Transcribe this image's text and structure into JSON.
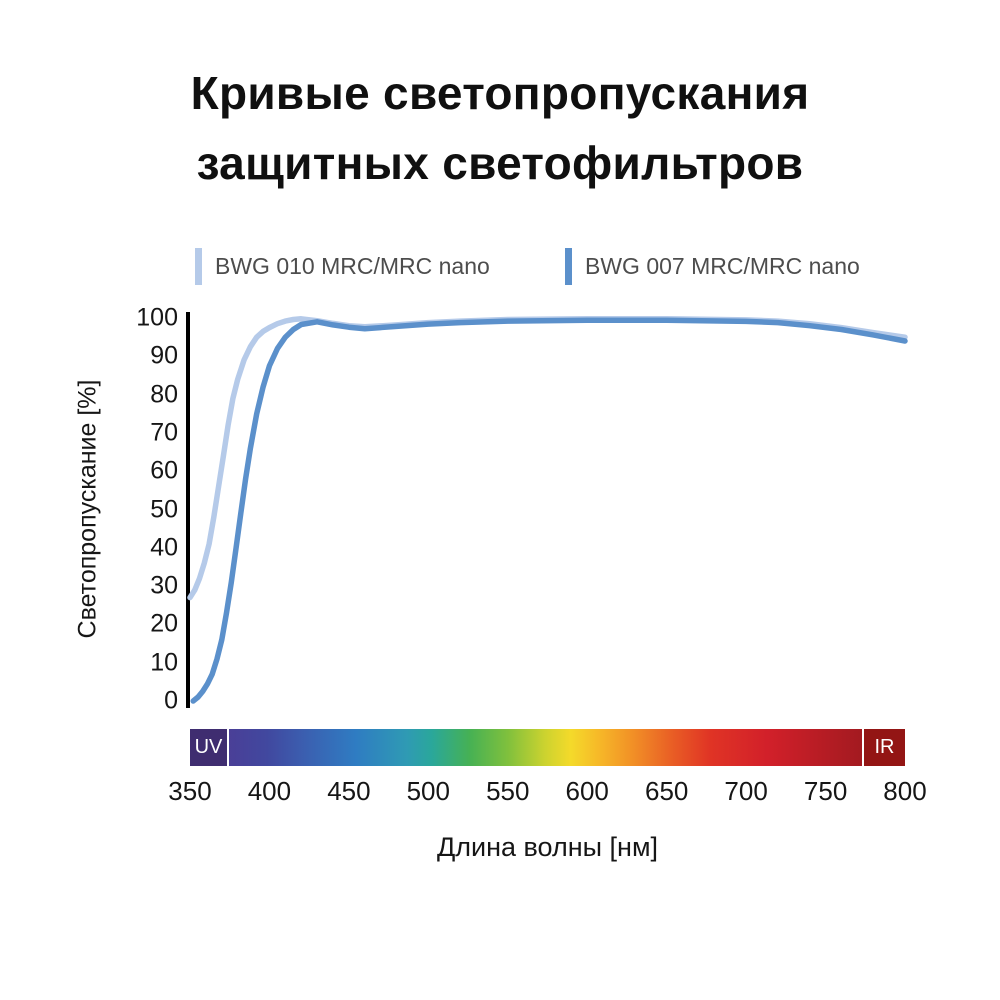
{
  "title": {
    "line1": "Кривые светопропускания",
    "line2": "защитных светофильтров"
  },
  "legend": [
    {
      "label": "BWG 010 MRC/MRC nano",
      "color": "#b5cae9"
    },
    {
      "label": "BWG 007 MRC/MRC nano",
      "color": "#5b90cb"
    }
  ],
  "chart_data": {
    "type": "line",
    "title": "Кривые светопропускания защитных светофильтров",
    "xlabel": "Длина волны [нм]",
    "ylabel": "Светопропускание [%]",
    "xlim": [
      350,
      800
    ],
    "ylim": [
      0,
      100
    ],
    "x_ticks": [
      350,
      400,
      450,
      500,
      550,
      600,
      650,
      700,
      750,
      800
    ],
    "y_ticks": [
      0,
      10,
      20,
      30,
      40,
      50,
      60,
      70,
      80,
      90,
      100
    ],
    "grid": false,
    "legend_position": "top",
    "series": [
      {
        "name": "BWG 010 MRC/MRC nano",
        "color": "#b5cae9",
        "x": [
          350,
          353,
          356,
          359,
          362,
          365,
          368,
          371,
          374,
          377,
          380,
          384,
          388,
          392,
          396,
          400,
          405,
          410,
          415,
          420,
          430,
          440,
          450,
          460,
          480,
          500,
          520,
          550,
          600,
          650,
          700,
          720,
          740,
          760,
          780,
          800
        ],
        "y": [
          27,
          29,
          32,
          36,
          41,
          48,
          56,
          64,
          72,
          79,
          84,
          89,
          92.5,
          95,
          96.5,
          97.5,
          98.5,
          99.2,
          99.6,
          99.8,
          99.3,
          98.6,
          98.0,
          97.7,
          98.2,
          98.8,
          99.2,
          99.6,
          99.8,
          99.8,
          99.5,
          99.2,
          98.5,
          97.5,
          96.2,
          95.0
        ]
      },
      {
        "name": "BWG 007 MRC/MRC nano",
        "color": "#5b90cb",
        "x": [
          352,
          355,
          358,
          361,
          364,
          367,
          370,
          373,
          376,
          379,
          382,
          385,
          388,
          392,
          396,
          400,
          405,
          410,
          415,
          420,
          430,
          440,
          450,
          460,
          480,
          500,
          520,
          550,
          600,
          650,
          700,
          720,
          740,
          760,
          780,
          800
        ],
        "y": [
          0,
          1,
          2.5,
          4.5,
          7,
          11,
          16,
          23,
          31,
          40,
          49,
          58,
          66,
          75,
          82,
          87.5,
          92,
          95,
          97,
          98.3,
          99.0,
          98.2,
          97.6,
          97.2,
          97.8,
          98.4,
          98.8,
          99.2,
          99.4,
          99.4,
          99.1,
          98.8,
          98.0,
          97.0,
          95.6,
          94.0
        ]
      }
    ],
    "spectrum": {
      "uv_label": "UV",
      "ir_label": "IR",
      "uv_color": "#3f2d70",
      "ir_color": "#931514",
      "stops": [
        {
          "pos": 0,
          "color": "#4a3f97"
        },
        {
          "pos": 6,
          "color": "#41489f"
        },
        {
          "pos": 12,
          "color": "#3b5fb0"
        },
        {
          "pos": 20,
          "color": "#2f7cc2"
        },
        {
          "pos": 28,
          "color": "#2f9ab4"
        },
        {
          "pos": 32,
          "color": "#2aa79b"
        },
        {
          "pos": 38,
          "color": "#46b154"
        },
        {
          "pos": 44,
          "color": "#7fc03d"
        },
        {
          "pos": 50,
          "color": "#cdd32f"
        },
        {
          "pos": 54,
          "color": "#f4da2a"
        },
        {
          "pos": 59,
          "color": "#f6b428"
        },
        {
          "pos": 64,
          "color": "#f18e26"
        },
        {
          "pos": 70,
          "color": "#e95e25"
        },
        {
          "pos": 76,
          "color": "#e03425"
        },
        {
          "pos": 85,
          "color": "#d2202a"
        },
        {
          "pos": 100,
          "color": "#a31a20"
        }
      ]
    }
  }
}
